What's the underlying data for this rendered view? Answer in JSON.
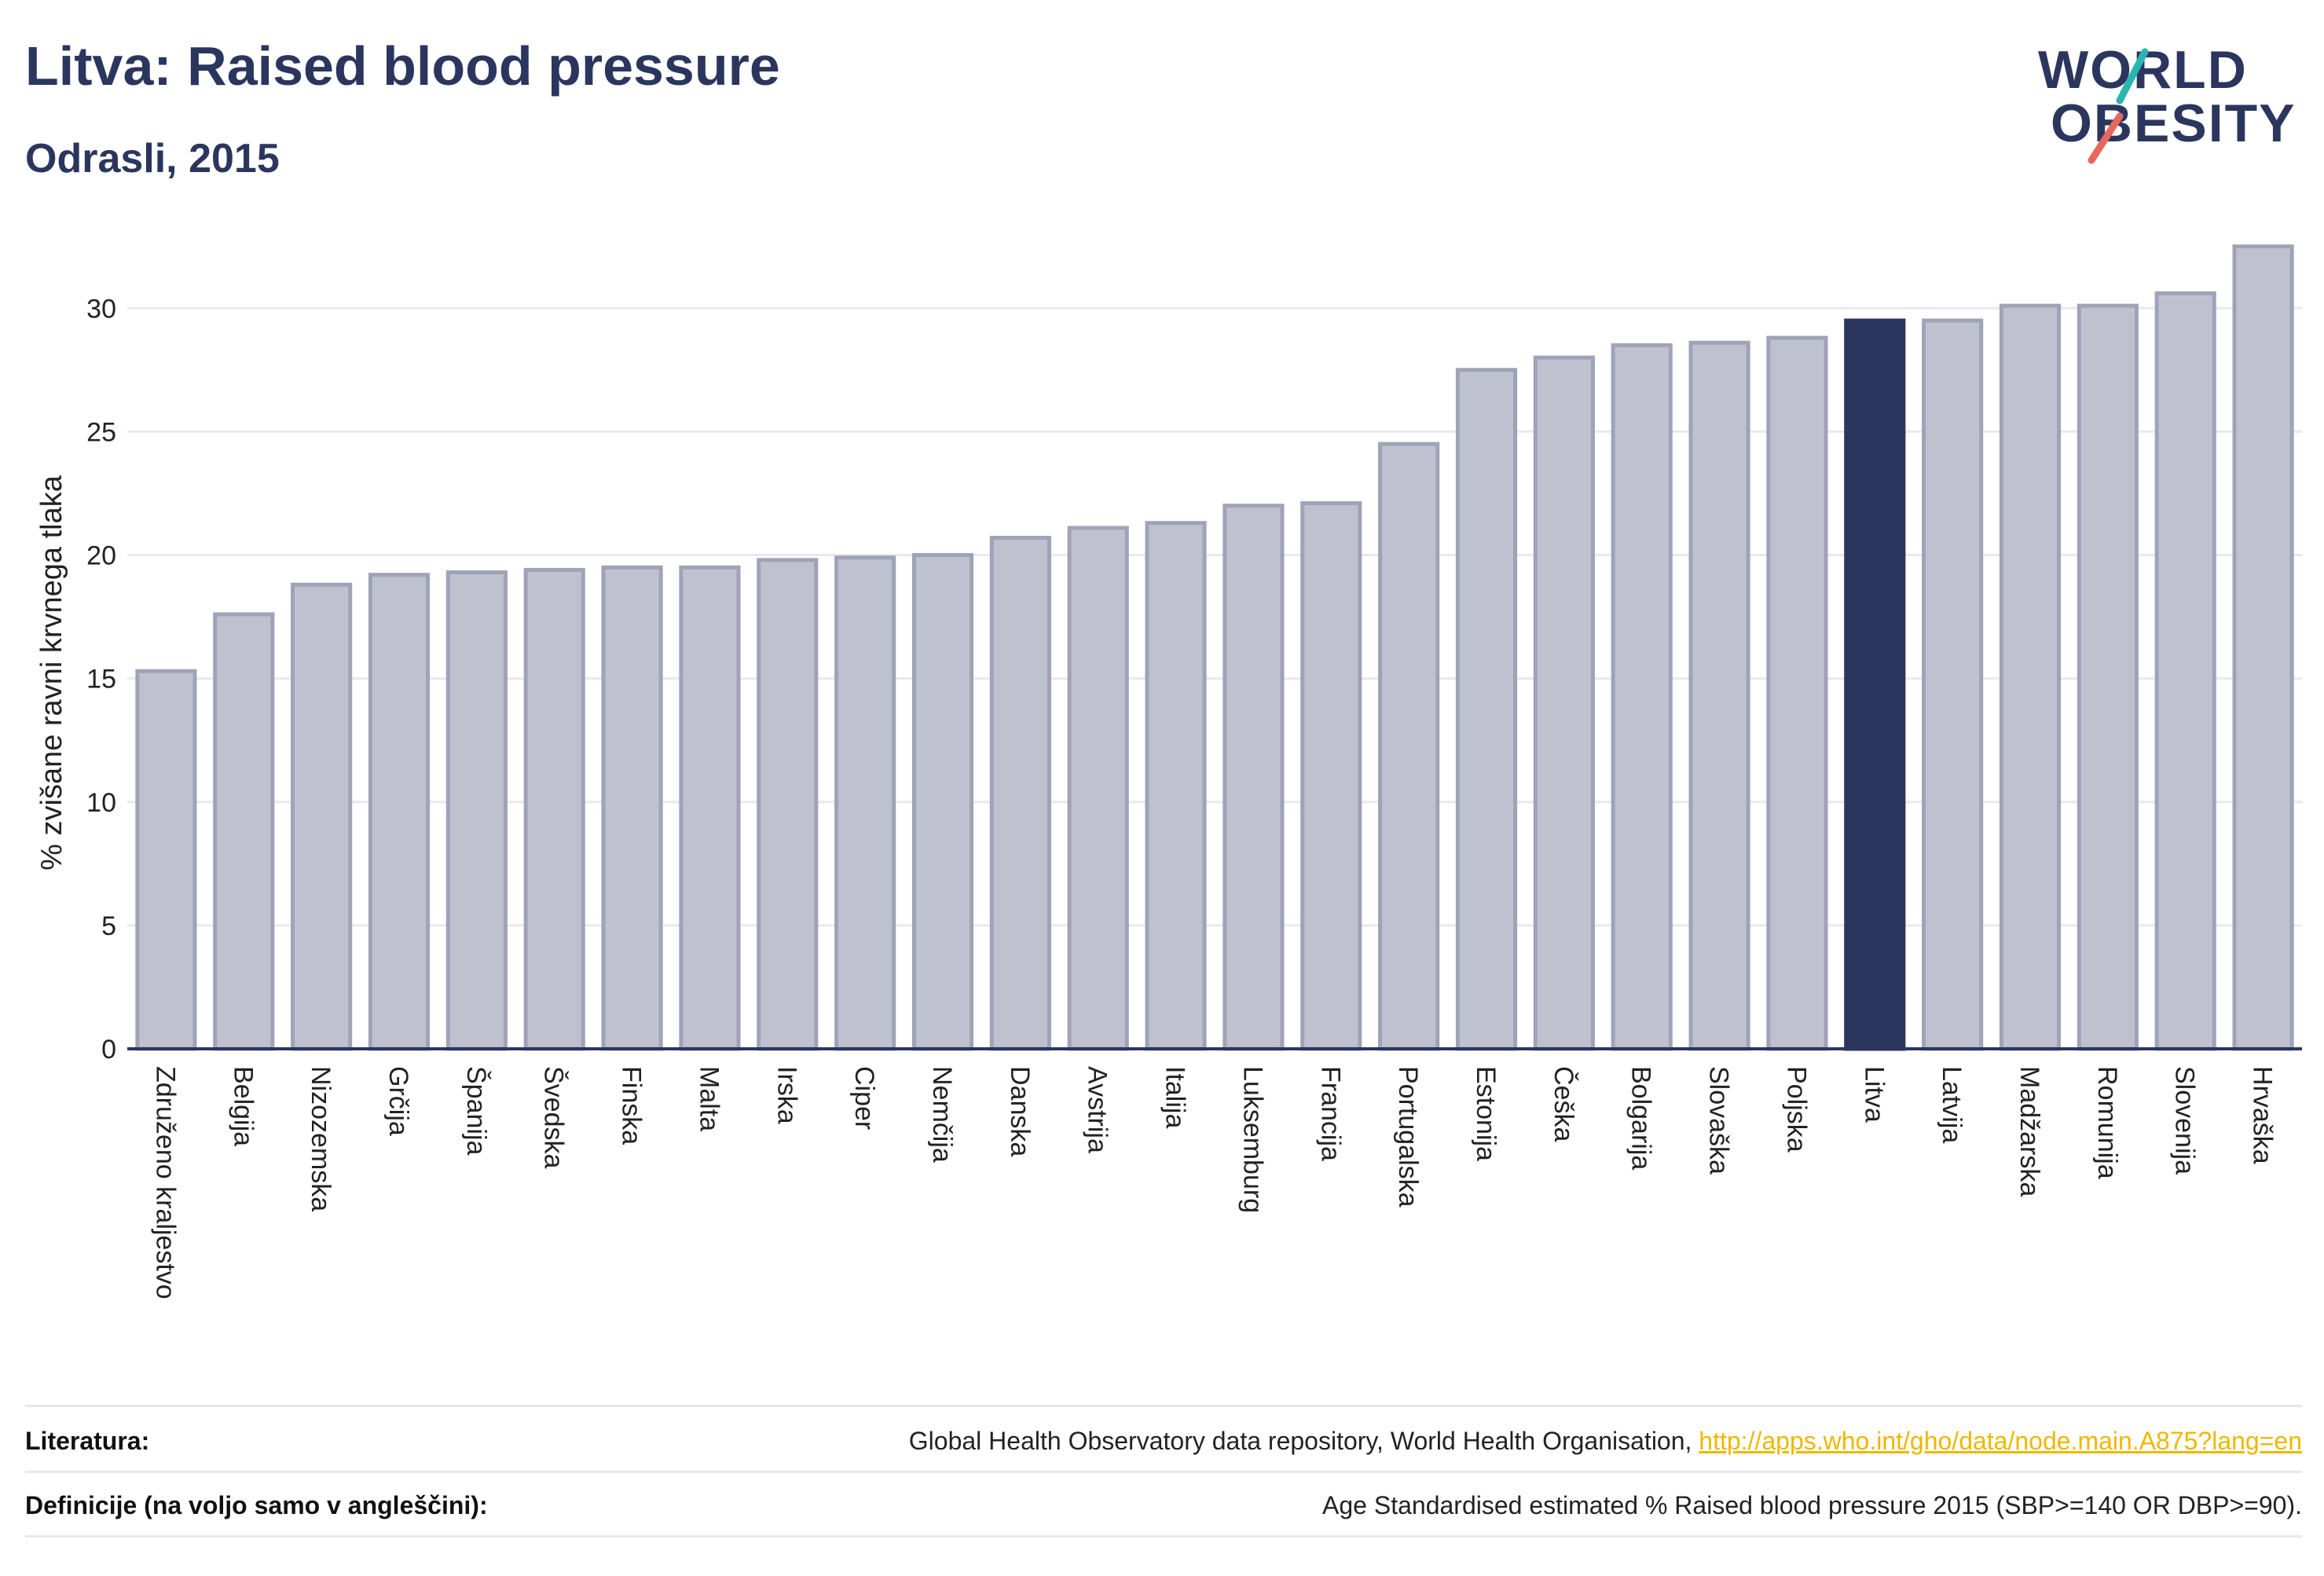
{
  "header": {
    "title": "Litva: Raised blood pressure",
    "subtitle": "Odrasli, 2015"
  },
  "logo": {
    "line1": "WORLD",
    "line2": "OBESITY"
  },
  "colors": {
    "bar_default": "#bfc2ce",
    "bar_default_stroke": "#9ea3b8",
    "bar_highlight": "#2b365f",
    "grid": "#e8e9ee",
    "axis": "#2b365f",
    "link": "#f2b600",
    "logo_slash_teal": "#2bb5b0",
    "logo_slash_coral": "#e8675c"
  },
  "chart_data": {
    "type": "bar",
    "title": "Litva: Raised blood pressure",
    "subtitle": "Odrasli, 2015",
    "xlabel": "",
    "ylabel": "% zvišane ravni krvnega tlaka",
    "ylim": [
      0,
      33
    ],
    "yticks": [
      0,
      5,
      10,
      15,
      20,
      25,
      30
    ],
    "grid": true,
    "highlight": "Litva",
    "categories": [
      "Združeno kraljestvo",
      "Belgija",
      "Nizozemska",
      "Grčija",
      "Španija",
      "Švedska",
      "Finska",
      "Malta",
      "Irska",
      "Ciper",
      "Nemčija",
      "Danska",
      "Avstrija",
      "Italija",
      "Luksemburg",
      "Francija",
      "Portugalska",
      "Estonija",
      "Češka",
      "Bolgarija",
      "Slovaška",
      "Poljska",
      "Litva",
      "Latvija",
      "Madžarska",
      "Romunija",
      "Slovenija",
      "Hrvaška"
    ],
    "values": [
      15.3,
      17.6,
      18.8,
      19.2,
      19.3,
      19.4,
      19.5,
      19.5,
      19.8,
      19.9,
      20.0,
      20.7,
      21.1,
      21.3,
      22.0,
      22.1,
      24.5,
      27.5,
      28.0,
      28.5,
      28.6,
      28.8,
      29.5,
      29.5,
      30.1,
      30.1,
      30.6,
      32.5
    ]
  },
  "footer": {
    "ref_label": "Literatura:",
    "ref_text": "Global Health Observatory data repository, World Health Organisation, ",
    "ref_link": "http://apps.who.int/gho/data/node.main.A875?lang=en",
    "def_label": "Definicije (na voljo samo v angleščini):",
    "def_text": "Age Standardised estimated % Raised blood pressure 2015 (SBP>=140 OR DBP>=90)."
  }
}
